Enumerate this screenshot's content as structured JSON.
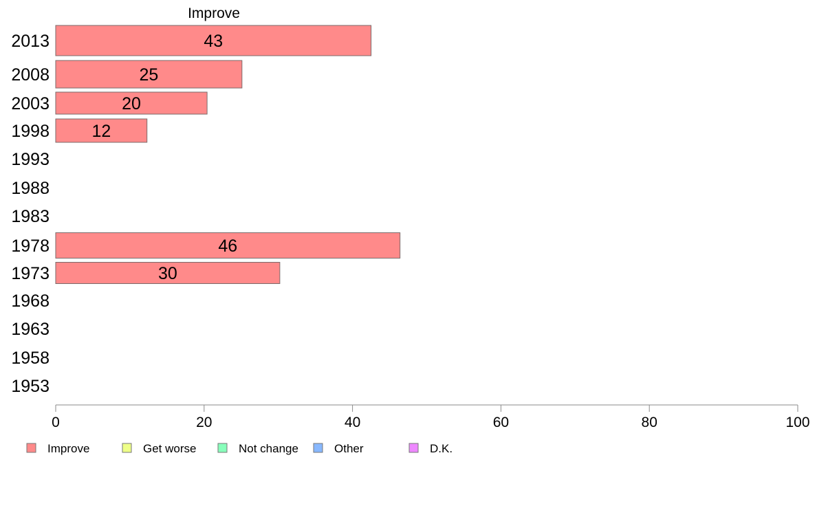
{
  "chart_data": {
    "type": "bar",
    "orientation": "horizontal",
    "title": "Improve",
    "categories": [
      "2013",
      "2008",
      "2003",
      "1998",
      "1993",
      "1988",
      "1983",
      "1978",
      "1973",
      "1968",
      "1963",
      "1958",
      "1953"
    ],
    "series": [
      {
        "name": "Improve",
        "color": "#FF8A8A",
        "values": [
          42.5,
          25.1,
          20.4,
          12.3,
          null,
          null,
          null,
          46.4,
          30.2,
          null,
          null,
          null,
          null
        ]
      }
    ],
    "data_labels": [
      "43",
      "25",
      "20",
      "12",
      "",
      "",
      "",
      "46",
      "30",
      "",
      "",
      "",
      ""
    ],
    "xlim": [
      0,
      100
    ],
    "x_ticks": [
      "0",
      "20",
      "40",
      "60",
      "80",
      "100"
    ],
    "grid": false,
    "legend": {
      "placement": "bottom-left",
      "items": [
        {
          "label": "Improve",
          "color": "#FF8A8A"
        },
        {
          "label": "Get worse",
          "color": "#EEFF88"
        },
        {
          "label": "Not change",
          "color": "#88FFBB"
        },
        {
          "label": "Other",
          "color": "#88B8FF"
        },
        {
          "label": "D.K.",
          "color": "#EE88FF"
        }
      ]
    }
  }
}
